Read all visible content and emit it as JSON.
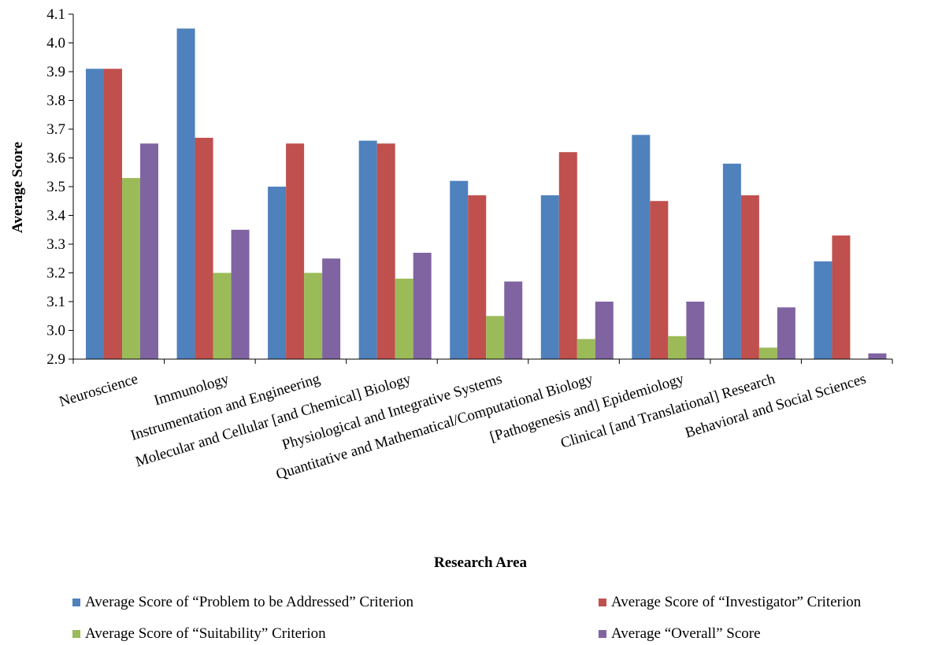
{
  "chart_data": {
    "type": "bar",
    "title": "",
    "xlabel": "Research Area",
    "ylabel": "Average Score",
    "ylim": [
      2.9,
      4.1
    ],
    "yticks": [
      "2.9",
      "3.0",
      "3.1",
      "3.2",
      "3.3",
      "3.4",
      "3.5",
      "3.6",
      "3.7",
      "3.8",
      "3.9",
      "4.0",
      "4.1"
    ],
    "grid": false,
    "legend_position": "bottom",
    "categories": [
      "Neuroscience",
      "Immunology",
      "Instrumentation and Engineering",
      "Molecular and Cellular [and Chemical] Biology",
      "Physiological and Integrative Systems",
      "Quantitative and Mathematical/Computational Biology",
      "[Pathogenesis and] Epidemiology",
      "Clinical [and Translational]  Research",
      "Behavioral and Social Sciences"
    ],
    "series": [
      {
        "name": "Average Score of “Problem to be Addressed” Criterion",
        "color": "#4F81BD",
        "values": [
          3.91,
          4.05,
          3.5,
          3.66,
          3.52,
          3.47,
          3.68,
          3.58,
          3.24
        ]
      },
      {
        "name": "Average Score of “Investigator” Criterion",
        "color": "#C0504D",
        "values": [
          3.91,
          3.67,
          3.65,
          3.65,
          3.47,
          3.62,
          3.45,
          3.47,
          3.33
        ]
      },
      {
        "name": "Average Score of “Suitability” Criterion",
        "color": "#9BBB59",
        "values": [
          3.53,
          3.2,
          3.2,
          3.18,
          3.05,
          2.97,
          2.98,
          2.94,
          2.9
        ]
      },
      {
        "name": "Average “Overall” Score",
        "color": "#8064A2",
        "values": [
          3.65,
          3.35,
          3.25,
          3.27,
          3.17,
          3.1,
          3.1,
          3.08,
          2.92
        ]
      }
    ]
  }
}
